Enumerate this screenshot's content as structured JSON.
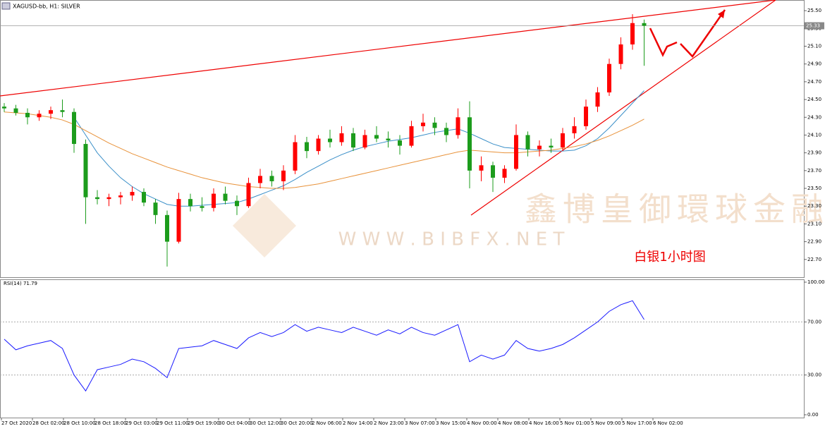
{
  "chart_data": [
    {
      "type": "candlestick",
      "title": "XAGUSD-bb, H1: SILVER",
      "watermark": "鑫博皇御環球金融",
      "watermark_url": "W W W . B I B F X . N E T",
      "annotation": "白银1小时图",
      "up_color": "#ff0000",
      "down_color": "#1c9c1c",
      "last_price": {
        "value": 25.33,
        "label": "25.33"
      },
      "categories": [
        "27 Oct 2020",
        "28 Oct 02:00",
        "28 Oct 10:00",
        "28 Oct 18:00",
        "29 Oct 03:00",
        "29 Oct 11:00",
        "29 Oct 19:00",
        "30 Oct 04:00",
        "30 Oct 12:00",
        "30 Oct 20:00",
        "2 Nov 06:00",
        "2 Nov 14:00",
        "2 Nov 23:00",
        "3 Nov 07:00",
        "3 Nov 15:00",
        "4 Nov 00:00",
        "4 Nov 08:00",
        "4 Nov 16:00",
        "5 Nov 01:00",
        "5 Nov 09:00",
        "5 Nov 17:00",
        "6 Nov 02:00"
      ],
      "open": [
        24.42,
        24.4,
        24.35,
        24.3,
        24.34,
        24.38,
        24.36,
        24.0,
        23.4,
        23.38,
        23.4,
        23.42,
        23.46,
        23.34,
        23.2,
        22.9,
        23.38,
        23.3,
        23.28,
        23.44,
        23.36,
        23.3,
        23.56,
        23.64,
        23.58,
        23.7,
        24.02,
        23.92,
        24.06,
        24.02,
        24.12,
        23.96,
        24.1,
        24.06,
        24.04,
        23.98,
        24.2,
        24.24,
        24.18,
        24.1,
        24.3,
        23.7,
        23.76,
        23.62,
        23.72,
        24.1,
        23.94,
        23.98,
        23.96,
        24.12,
        24.2,
        24.42,
        24.58,
        24.9,
        25.12,
        25.36
      ],
      "high": [
        24.46,
        24.44,
        24.4,
        24.38,
        24.42,
        24.5,
        24.4,
        24.05,
        23.48,
        23.44,
        23.46,
        23.52,
        23.5,
        23.38,
        23.25,
        23.45,
        23.44,
        23.4,
        23.5,
        23.52,
        23.42,
        23.62,
        23.72,
        23.7,
        23.76,
        24.1,
        24.08,
        24.1,
        24.16,
        24.2,
        24.18,
        24.16,
        24.2,
        24.14,
        24.1,
        24.26,
        24.34,
        24.3,
        24.24,
        24.4,
        24.48,
        23.86,
        23.8,
        23.76,
        24.22,
        24.14,
        24.04,
        24.06,
        24.18,
        24.3,
        24.5,
        24.64,
        24.96,
        25.2,
        25.46,
        25.4
      ],
      "low": [
        24.36,
        24.32,
        24.22,
        24.26,
        24.28,
        24.3,
        23.9,
        23.1,
        23.32,
        23.3,
        23.32,
        23.36,
        23.3,
        23.1,
        22.62,
        22.88,
        23.24,
        23.24,
        23.24,
        23.32,
        23.2,
        23.28,
        23.5,
        23.52,
        23.48,
        23.66,
        23.84,
        23.88,
        23.96,
        23.98,
        23.92,
        23.94,
        24.02,
        23.96,
        23.88,
        23.96,
        24.14,
        24.1,
        24.02,
        24.06,
        23.5,
        23.58,
        23.46,
        23.56,
        23.7,
        23.86,
        23.86,
        23.9,
        23.92,
        24.06,
        24.16,
        24.36,
        24.54,
        24.84,
        25.06,
        24.88
      ],
      "close": [
        24.4,
        24.35,
        24.3,
        24.34,
        24.38,
        24.36,
        24.0,
        23.4,
        23.38,
        23.4,
        23.42,
        23.46,
        23.34,
        23.2,
        22.9,
        23.38,
        23.3,
        23.28,
        23.44,
        23.36,
        23.3,
        23.56,
        23.64,
        23.58,
        23.7,
        24.02,
        23.92,
        24.06,
        24.02,
        24.12,
        23.96,
        24.1,
        24.06,
        24.04,
        23.98,
        24.2,
        24.24,
        24.18,
        24.1,
        24.3,
        23.7,
        23.76,
        23.62,
        23.72,
        24.1,
        23.94,
        23.98,
        23.96,
        24.12,
        24.2,
        24.42,
        24.58,
        24.9,
        25.12,
        25.36,
        25.33
      ],
      "lines": [
        {
          "color": "#3a8fc8",
          "values": [
            null,
            null,
            null,
            null,
            null,
            null,
            24.3,
            24.1,
            23.9,
            23.75,
            23.62,
            23.52,
            23.44,
            23.38,
            23.32,
            23.3,
            23.3,
            23.31,
            23.32,
            23.33,
            23.34,
            23.38,
            23.43,
            23.48,
            23.53,
            23.6,
            23.68,
            23.75,
            23.82,
            23.88,
            23.93,
            23.97,
            24.0,
            24.03,
            24.05,
            24.07,
            24.1,
            24.13,
            24.15,
            24.17,
            24.12,
            24.06,
            24.0,
            23.96,
            23.95,
            23.94,
            23.93,
            23.92,
            23.92,
            23.93,
            23.98,
            24.06,
            24.18,
            24.32,
            24.46,
            24.6
          ]
        },
        {
          "color": "#e8923a",
          "values": [
            24.36,
            24.35,
            24.34,
            24.32,
            24.3,
            24.27,
            24.22,
            24.15,
            24.08,
            24.01,
            23.95,
            23.89,
            23.84,
            23.79,
            23.74,
            23.7,
            23.66,
            23.62,
            23.59,
            23.56,
            23.54,
            23.52,
            23.51,
            23.5,
            23.5,
            23.51,
            23.53,
            23.55,
            23.58,
            23.61,
            23.64,
            23.67,
            23.7,
            23.73,
            23.76,
            23.79,
            23.82,
            23.85,
            23.88,
            23.91,
            23.93,
            23.92,
            23.91,
            23.9,
            23.9,
            23.91,
            23.92,
            23.93,
            23.95,
            23.97,
            24.0,
            24.04,
            24.09,
            24.15,
            24.21,
            24.28
          ]
        }
      ],
      "ylim": [
        22.5,
        25.62
      ],
      "yticks": [
        {
          "value": 22.7,
          "label": "22.70"
        },
        {
          "value": 22.9,
          "label": "22.90"
        },
        {
          "value": 23.1,
          "label": "23.10"
        },
        {
          "value": 23.3,
          "label": "23.30"
        },
        {
          "value": 23.5,
          "label": "23.50"
        },
        {
          "value": 23.7,
          "label": "23.70"
        },
        {
          "value": 23.9,
          "label": "23.90"
        },
        {
          "value": 24.1,
          "label": "24.10"
        },
        {
          "value": 24.3,
          "label": "24.30"
        },
        {
          "value": 24.5,
          "label": "24.50"
        },
        {
          "value": 24.7,
          "label": "24.70"
        },
        {
          "value": 24.9,
          "label": "24.90"
        },
        {
          "value": 25.1,
          "label": "25.10"
        },
        {
          "value": 25.3,
          "label": "25.30"
        },
        {
          "value": 25.5,
          "label": "25.50"
        }
      ]
    },
    {
      "type": "line",
      "title": "RSI(14) 71.79",
      "color": "#1a1aff",
      "values": [
        57,
        49,
        52,
        54,
        56,
        50,
        30,
        18,
        34,
        36,
        38,
        42,
        40,
        35,
        28,
        50,
        51,
        52,
        56,
        53,
        50,
        58,
        62,
        59,
        62,
        68,
        63,
        66,
        64,
        62,
        66,
        63,
        60,
        64,
        61,
        66,
        62,
        60,
        64,
        68,
        40,
        45,
        42,
        45,
        56,
        50,
        48,
        50,
        53,
        58,
        64,
        70,
        78,
        83,
        86,
        71.79
      ],
      "ylim": [
        0,
        100
      ],
      "yticks": [
        {
          "value": 0,
          "label": "0.00"
        },
        {
          "value": 30,
          "label": "30.00"
        },
        {
          "value": 70,
          "label": "70.00"
        },
        {
          "value": 100,
          "label": "100.00"
        }
      ]
    }
  ]
}
